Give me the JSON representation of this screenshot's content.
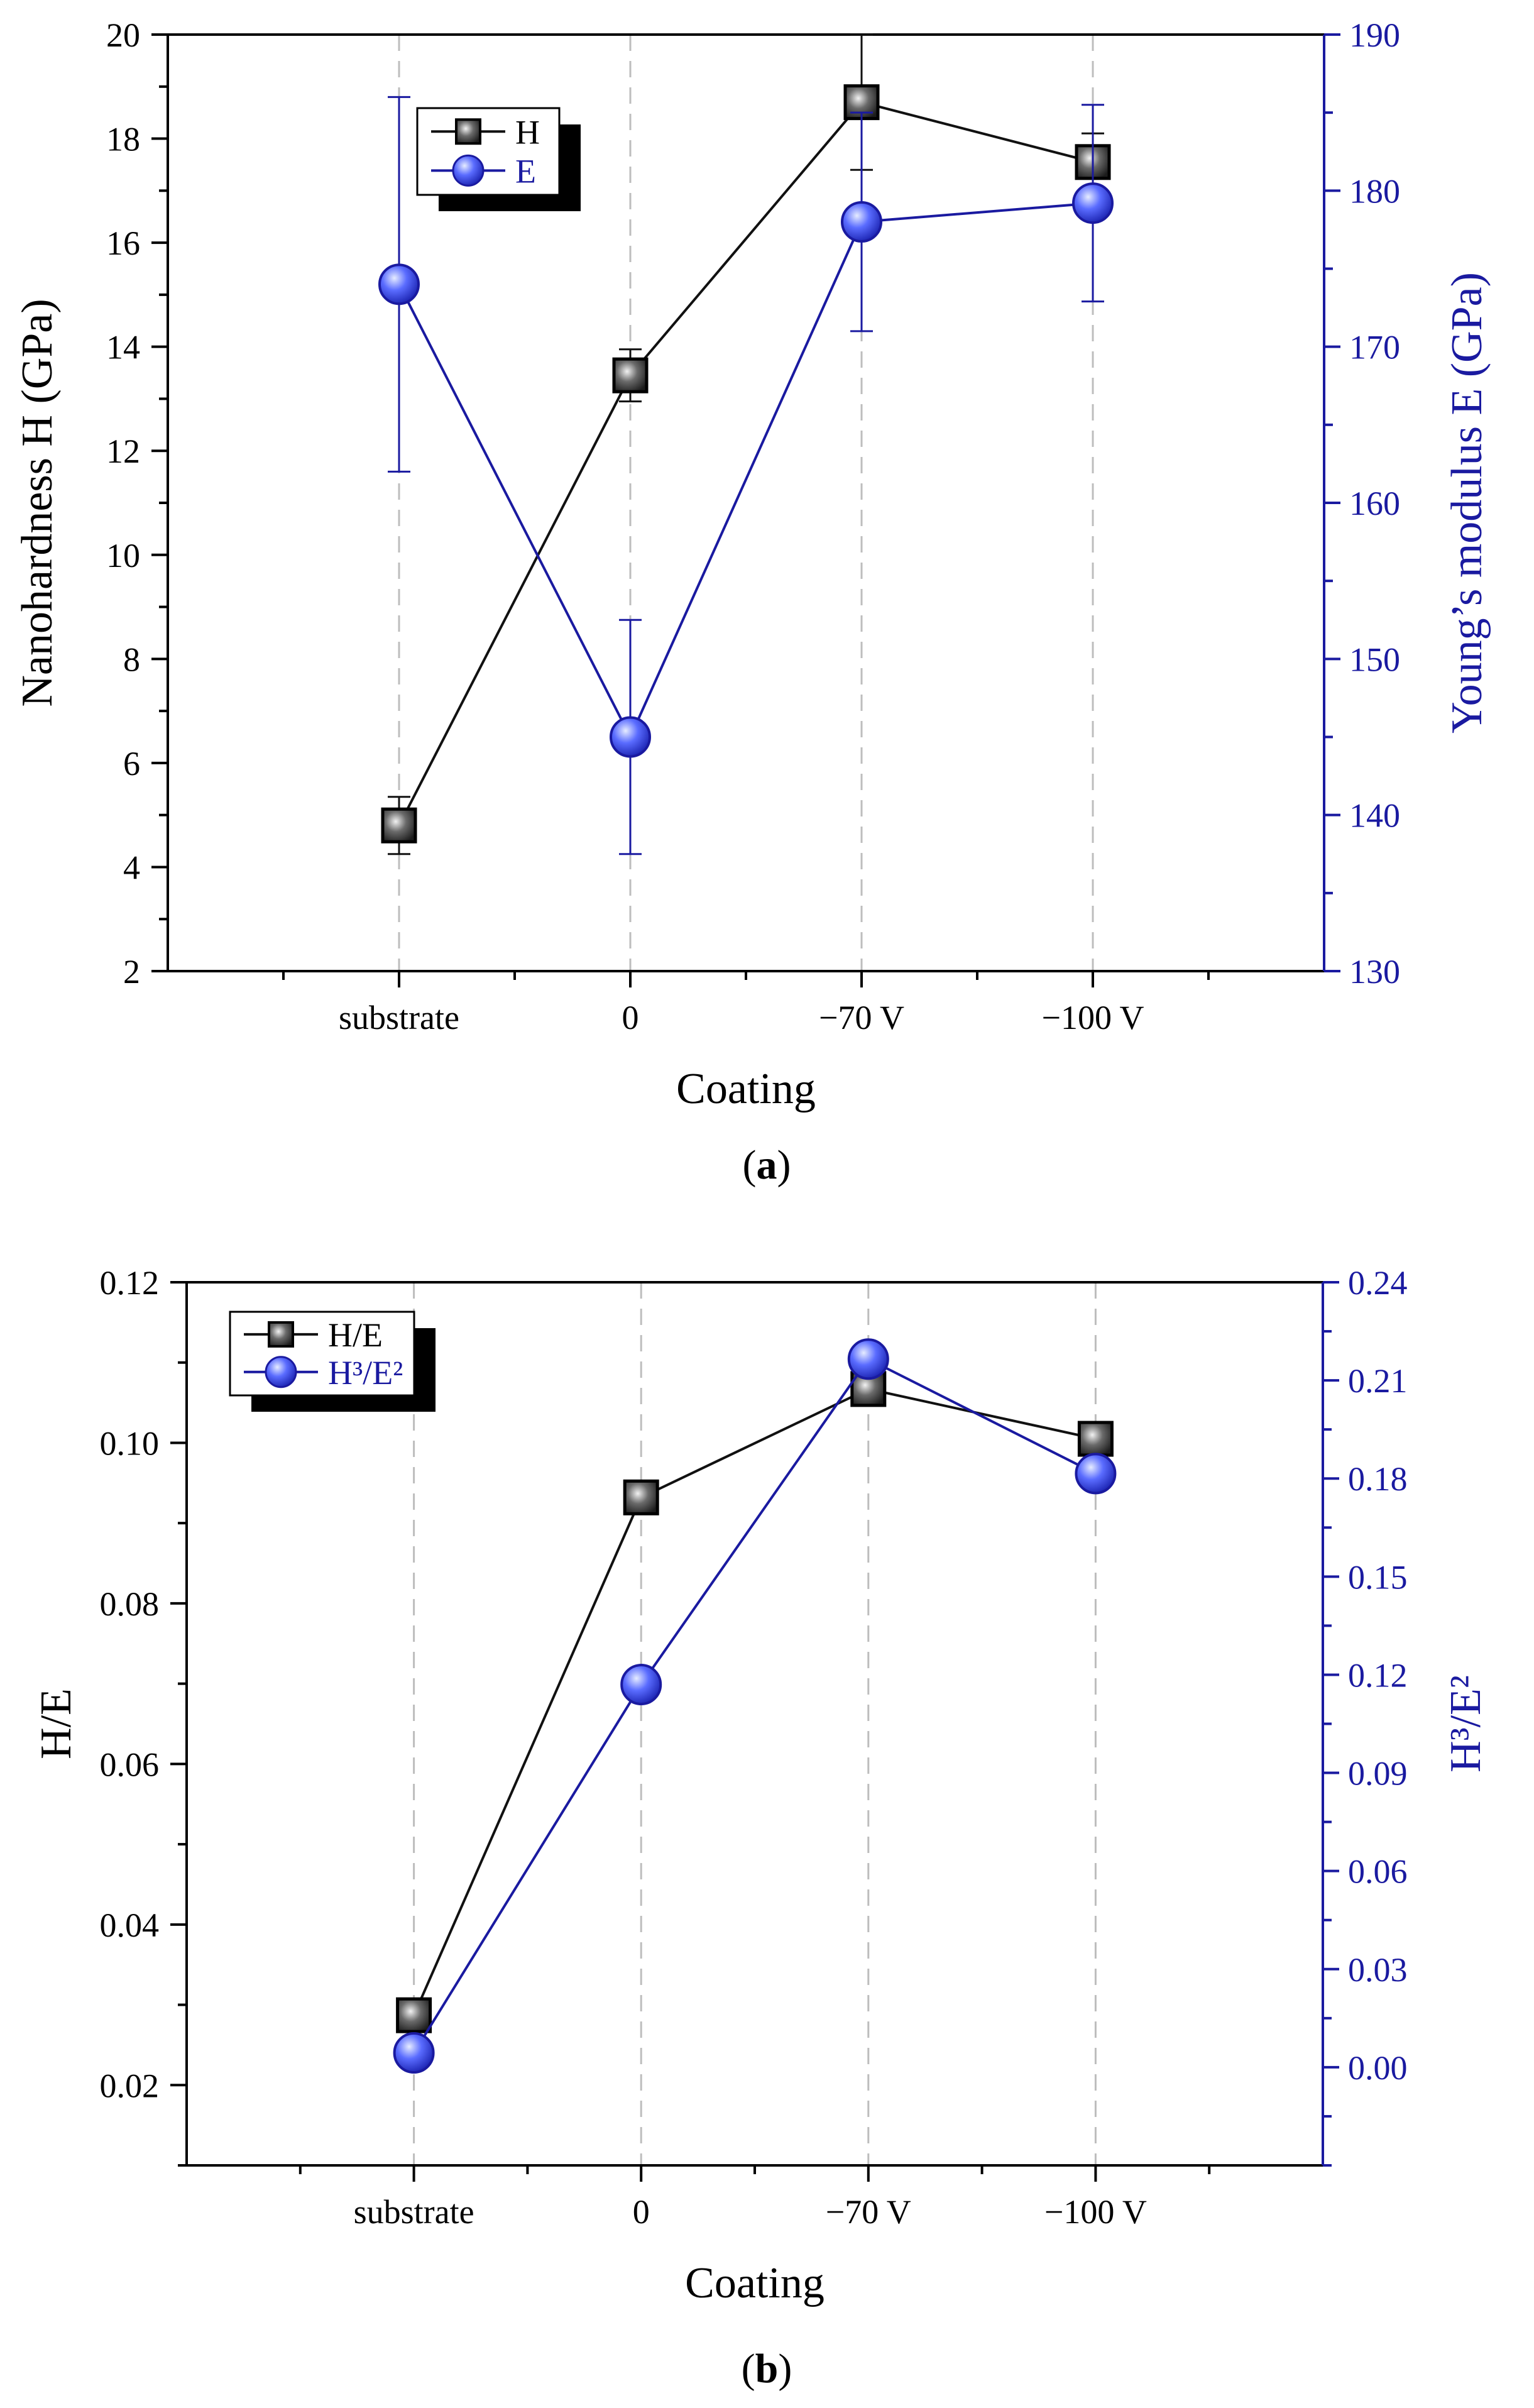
{
  "chart_data": [
    {
      "type": "line",
      "panel_label": "a",
      "categories": [
        "substrate",
        "0",
        "−70 V",
        "−100 V"
      ],
      "xlabel": "Coating",
      "ylabel": "Nanohardness H (GPa)",
      "ylabel_right": "Young’s modulus E (GPa)",
      "ylim": [
        2,
        20
      ],
      "ylim_right": [
        130,
        190
      ],
      "yticks": [
        2,
        4,
        6,
        8,
        10,
        12,
        14,
        16,
        18,
        20
      ],
      "yticks_right": [
        130,
        140,
        150,
        160,
        170,
        180,
        190
      ],
      "grid": "vertical dashed at categories",
      "legend_position": "top-left",
      "series": [
        {
          "name": "H",
          "axis": "left",
          "marker": "square",
          "color": "#111111",
          "marker_color": "#3a3a3a",
          "values": [
            4.8,
            13.45,
            18.7,
            17.55
          ],
          "errors": [
            0.55,
            0.5,
            1.3,
            0.55
          ]
        },
        {
          "name": "E",
          "axis": "right",
          "marker": "circle",
          "color": "#1a1aa0",
          "marker_color": "#4a5af0",
          "values": [
            174,
            145,
            178,
            179.2
          ],
          "errors": [
            12,
            7.5,
            7,
            6.3
          ]
        }
      ]
    },
    {
      "type": "line",
      "panel_label": "b",
      "categories": [
        "substrate",
        "0",
        "−70 V",
        "−100 V"
      ],
      "xlabel": "Coating",
      "ylabel": "H/E",
      "ylabel_right": "H³/E²",
      "ylim": [
        0.01,
        0.12
      ],
      "ylim_right": [
        -0.03,
        0.24
      ],
      "yticks": [
        0.02,
        0.04,
        0.06,
        0.08,
        0.1,
        0.12
      ],
      "yticks_right": [
        0.0,
        0.03,
        0.06,
        0.09,
        0.12,
        0.15,
        0.18,
        0.21,
        0.24
      ],
      "ytick_labels": [
        "0.02",
        "0.04",
        "0.06",
        "0.08",
        "0.10",
        "0.12"
      ],
      "ytick_labels_right": [
        "0.00",
        "0.03",
        "0.06",
        "0.09",
        "0.12",
        "0.15",
        "0.18",
        "0.21",
        "0.24"
      ],
      "grid": "vertical dashed at categories",
      "legend_position": "top-left",
      "series": [
        {
          "name": "H/E",
          "axis": "left",
          "marker": "square",
          "color": "#111111",
          "marker_color": "#3a3a3a",
          "values": [
            0.0287,
            0.0932,
            0.1067,
            0.1005
          ]
        },
        {
          "name": "H³/E²",
          "axis": "right",
          "marker": "circle",
          "color": "#1a1aa0",
          "marker_color": "#4a5af0",
          "values": [
            0.0044,
            0.117,
            0.2165,
            0.1815
          ]
        }
      ]
    }
  ]
}
